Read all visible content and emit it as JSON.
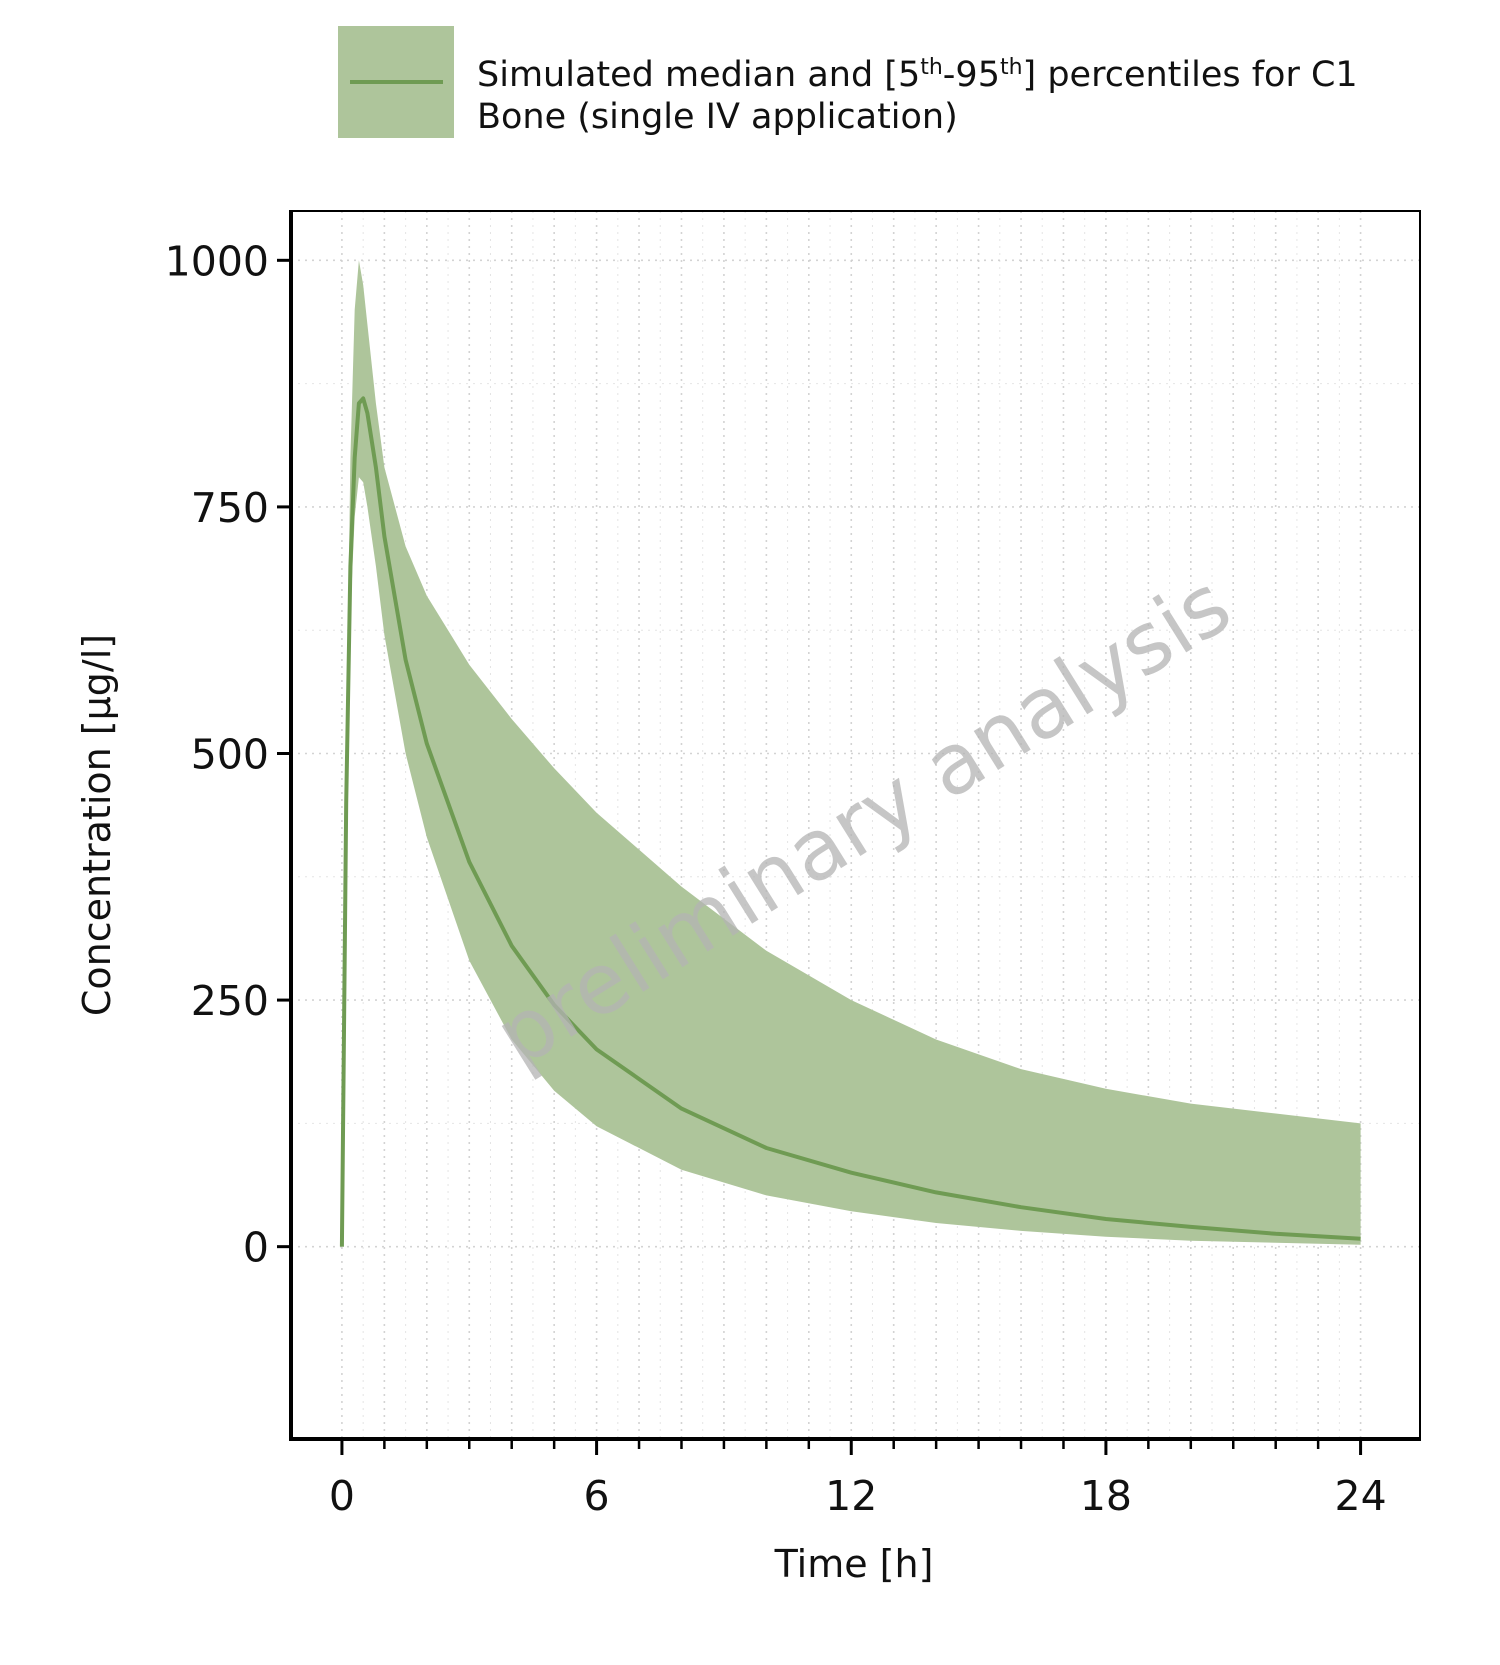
{
  "legend": {
    "line1_pre": "Simulated median and [5",
    "sup1": "th",
    "line1_mid": "-95",
    "sup2": "th",
    "line1_post": "] percentiles for C1",
    "line2": "Bone (single IV application)"
  },
  "watermark": "preliminary analysis",
  "colors": {
    "band": "#aec59b",
    "median": "#6f9b53",
    "grid": "#cfcfcf",
    "axis": "#000000"
  },
  "chart_data": {
    "type": "area",
    "xlabel": "Time [h]",
    "ylabel": "Concentration [µg/l]",
    "xlim": [
      -1.2,
      25.4
    ],
    "ylim": [
      -195,
      1050
    ],
    "x_ticks": [
      0,
      6,
      12,
      18,
      24
    ],
    "x_minor_step": 1,
    "y_ticks": [
      0,
      250,
      500,
      750,
      1000
    ],
    "grid": true,
    "legend_position": "top",
    "series": [
      {
        "name": "Simulated median and [5th-95th] percentiles for C1 Bone (single IV application)",
        "x": [
          0,
          0.1,
          0.2,
          0.3,
          0.4,
          0.5,
          0.6,
          0.8,
          1.0,
          1.5,
          2.0,
          3.0,
          4.0,
          5.0,
          6.0,
          8.0,
          10.0,
          12.0,
          14.0,
          16.0,
          18.0,
          20.0,
          22.0,
          24.0
        ],
        "median": [
          0,
          450,
          690,
          800,
          855,
          860,
          845,
          790,
          720,
          595,
          510,
          390,
          305,
          245,
          200,
          140,
          100,
          75,
          55,
          40,
          28,
          20,
          13,
          8
        ],
        "p5": [
          0,
          420,
          640,
          740,
          780,
          775,
          750,
          690,
          620,
          500,
          415,
          290,
          210,
          158,
          122,
          78,
          52,
          36,
          24,
          16,
          10,
          6,
          4,
          2
        ],
        "p95": [
          0,
          500,
          800,
          950,
          1000,
          975,
          935,
          855,
          790,
          710,
          660,
          590,
          535,
          485,
          440,
          365,
          300,
          250,
          210,
          180,
          160,
          145,
          135,
          125
        ]
      }
    ]
  }
}
